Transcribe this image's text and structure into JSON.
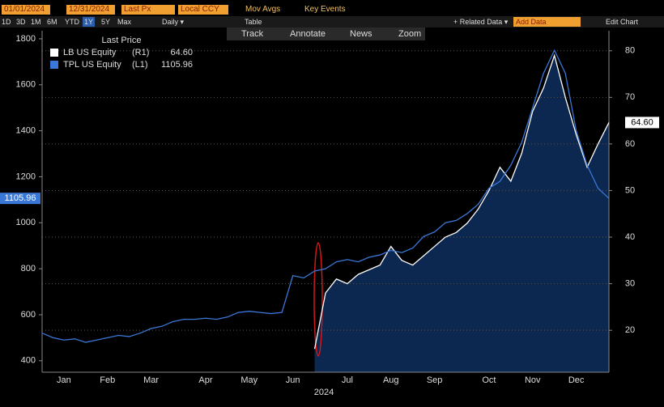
{
  "toolbar": {
    "start_date": "01/01/2024",
    "end_date": "12/31/2024",
    "field": "Last Px",
    "currency": "Local CCY",
    "mov_avgs": "Mov Avgs",
    "key_events": "Key Events",
    "ranges": [
      "1D",
      "3D",
      "1M",
      "6M",
      "YTD",
      "1Y",
      "5Y",
      "Max"
    ],
    "frequency": "Daily ▾",
    "table": "Table",
    "related_data": "+ Related Data ▾",
    "add_data": "Add Data",
    "edit_chart": "Edit Chart",
    "tools": [
      "Track",
      "Annotate",
      "News",
      "Zoom"
    ]
  },
  "chart_data": {
    "type": "line",
    "legend_title": "Last Price",
    "x_label": "2024",
    "categories": [
      null,
      null,
      "Jan",
      null,
      null,
      null,
      "Feb",
      null,
      null,
      null,
      "Mar",
      null,
      null,
      null,
      null,
      "Apr",
      null,
      null,
      null,
      "May",
      null,
      null,
      null,
      "Jun",
      null,
      null,
      null,
      null,
      "Jul",
      null,
      null,
      null,
      "Aug",
      null,
      null,
      null,
      "Sep",
      null,
      null,
      null,
      null,
      "Oct",
      null,
      null,
      null,
      "Nov",
      null,
      null,
      null,
      "Dec",
      null,
      null,
      null
    ],
    "series": [
      {
        "name": "LB US Equity",
        "axis_tag": "(R1)",
        "last_label": "64.60",
        "axis": "y2",
        "color": "#ffffff",
        "area_color": "#0c2750",
        "values": [
          null,
          null,
          null,
          null,
          null,
          null,
          null,
          null,
          null,
          null,
          null,
          null,
          null,
          null,
          null,
          null,
          null,
          null,
          null,
          null,
          null,
          null,
          null,
          null,
          null,
          16,
          28,
          31,
          30,
          32,
          33,
          34,
          38,
          35,
          34,
          36,
          38,
          40,
          41,
          43,
          46,
          50,
          55,
          52,
          58,
          67,
          72,
          79,
          70,
          62,
          55,
          60,
          64.6
        ]
      },
      {
        "name": "TPL US Equity",
        "axis_tag": "(L1)",
        "last_label": "1105.96",
        "color": "#3a78d8",
        "values": [
          520,
          500,
          490,
          495,
          480,
          490,
          500,
          510,
          505,
          520,
          540,
          550,
          570,
          580,
          580,
          585,
          580,
          590,
          610,
          615,
          610,
          605,
          610,
          770,
          760,
          790,
          800,
          830,
          840,
          830,
          850,
          860,
          880,
          870,
          890,
          940,
          960,
          1000,
          1010,
          1040,
          1080,
          1150,
          1180,
          1250,
          1350,
          1500,
          1650,
          1750,
          1650,
          1400,
          1250,
          1150,
          1105.96
        ]
      }
    ],
    "ylim": [
      350,
      1835
    ],
    "yticks": [
      400,
      600,
      800,
      1000,
      1200,
      1400,
      1600,
      1800
    ],
    "y2lim": [
      11,
      84.3
    ],
    "y2ticks": [
      20,
      30,
      40,
      50,
      60,
      70,
      80
    ],
    "grid": "y2"
  }
}
